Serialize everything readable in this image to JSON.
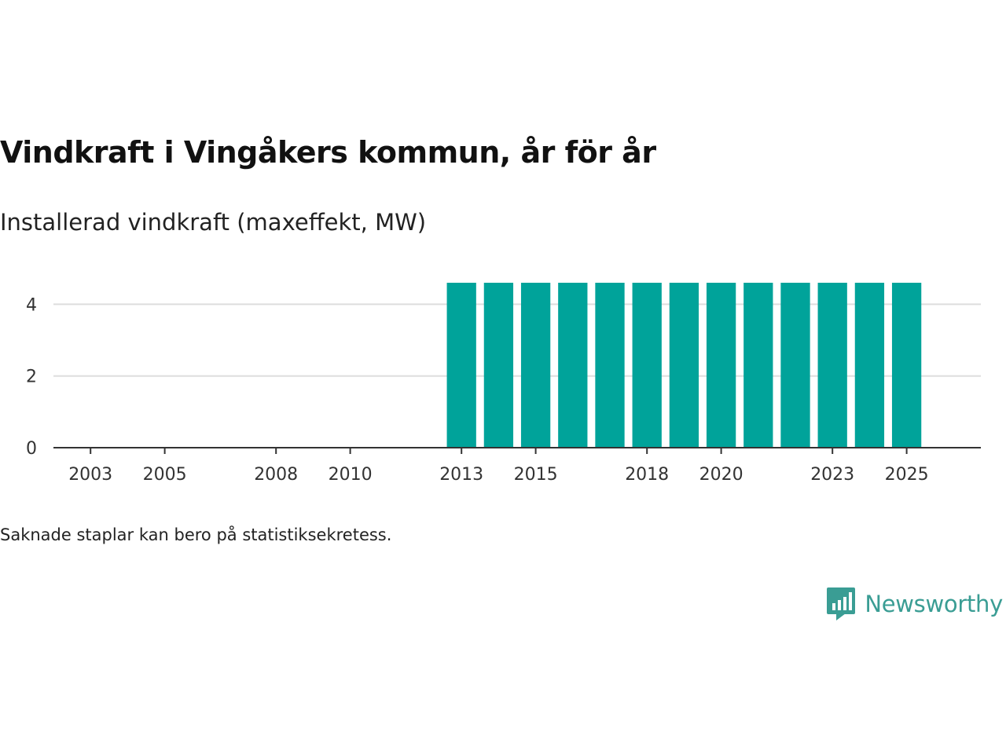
{
  "title": "Vindkraft i Vingåkers kommun, år för år",
  "subtitle": "Installerad vindkraft (maxeffekt, MW)",
  "footnote": "Saknade staplar kan bero på statistiksekretess.",
  "brand": {
    "name": "Newsworthy",
    "icon": "bar-chart-speech-bubble-icon"
  },
  "colors": {
    "bar": "#00a39a",
    "grid": "#dddddd",
    "axis": "#333333",
    "brand": "#3a9d94"
  },
  "chart_data": {
    "type": "bar",
    "title": "Vindkraft i Vingåkers kommun, år för år",
    "subtitle": "Installerad vindkraft (maxeffekt, MW)",
    "xlabel": "",
    "ylabel": "",
    "xlim": [
      2002,
      2027
    ],
    "ylim": [
      0,
      4.6
    ],
    "yticks": [
      0,
      2,
      4
    ],
    "xticks": [
      2003,
      2005,
      2008,
      2010,
      2013,
      2015,
      2018,
      2020,
      2023,
      2025
    ],
    "grid": true,
    "categories": [
      2013,
      2014,
      2015,
      2016,
      2017,
      2018,
      2019,
      2020,
      2021,
      2022,
      2023,
      2024,
      2025
    ],
    "values": [
      4.6,
      4.6,
      4.6,
      4.6,
      4.6,
      4.6,
      4.6,
      4.6,
      4.6,
      4.6,
      4.6,
      4.6,
      4.6
    ]
  }
}
